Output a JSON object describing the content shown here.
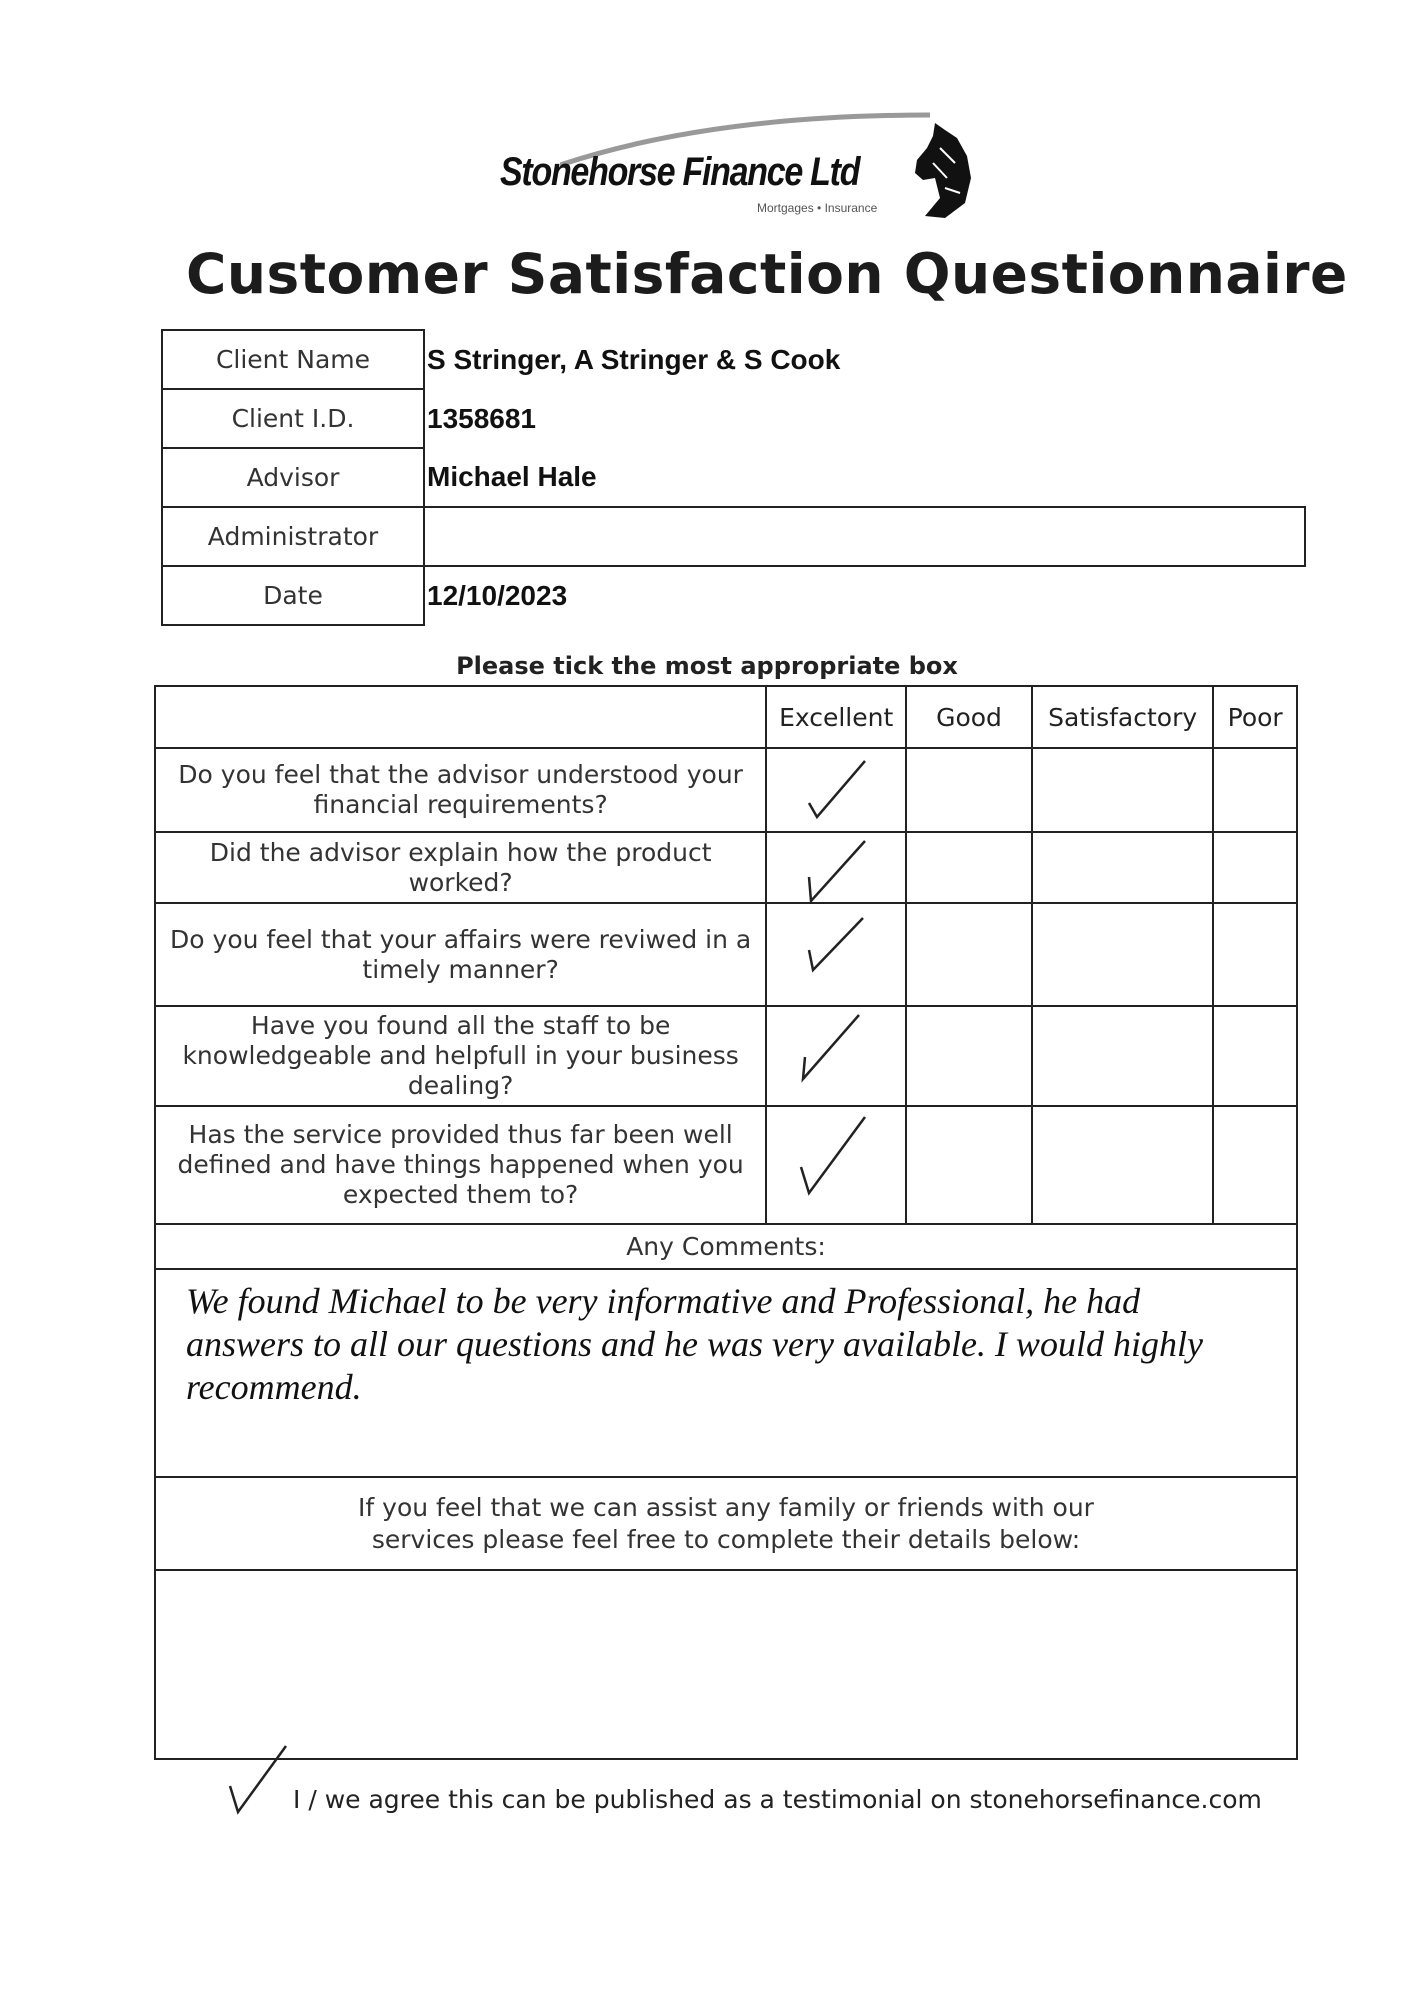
{
  "logo": {
    "name": "Stonehorse Finance Ltd",
    "tagline": "Mortgages • Insurance"
  },
  "title": "Customer Satisfaction Questionnaire",
  "client_info": [
    {
      "label": "Client Name",
      "value": "S Stringer, A Stringer & S Cook"
    },
    {
      "label": "Client I.D.",
      "value": "1358681"
    },
    {
      "label": "Advisor",
      "value": "Michael Hale"
    },
    {
      "label": "Administrator",
      "value": ""
    },
    {
      "label": "Date",
      "value": "12/10/2023"
    }
  ],
  "instruction": "Please tick the most appropriate box",
  "rating_columns": [
    "Excellent",
    "Good",
    "Satisfactory",
    "Poor"
  ],
  "questions": [
    {
      "text": "Do you feel that the advisor understood your financial requirements?",
      "selected": "Excellent"
    },
    {
      "text": "Did the advisor explain how the product worked?",
      "selected": "Excellent"
    },
    {
      "text": "Do you feel that your affairs were reviwed in a timely manner?",
      "selected": "Excellent"
    },
    {
      "text": "Have you found all the staff to be knowledgeable and helpfull in your business dealing?",
      "selected": "Excellent"
    },
    {
      "text": "Has the service provided thus far been well defined and have things happened when you expected them to?",
      "selected": "Excellent"
    }
  ],
  "comments_label": "Any Comments:",
  "comments": "We found Michael to be very informative and Professional, he had answers to all our questions and he was very available. I would highly recommend.",
  "referral_prompt": "If you feel that we can assist any family or friends with our services please feel free to complete their details below:",
  "referral_details": "",
  "consent": {
    "checked": true,
    "text": "I / we agree this can be published as a testimonial on stonehorsefinance.com"
  }
}
